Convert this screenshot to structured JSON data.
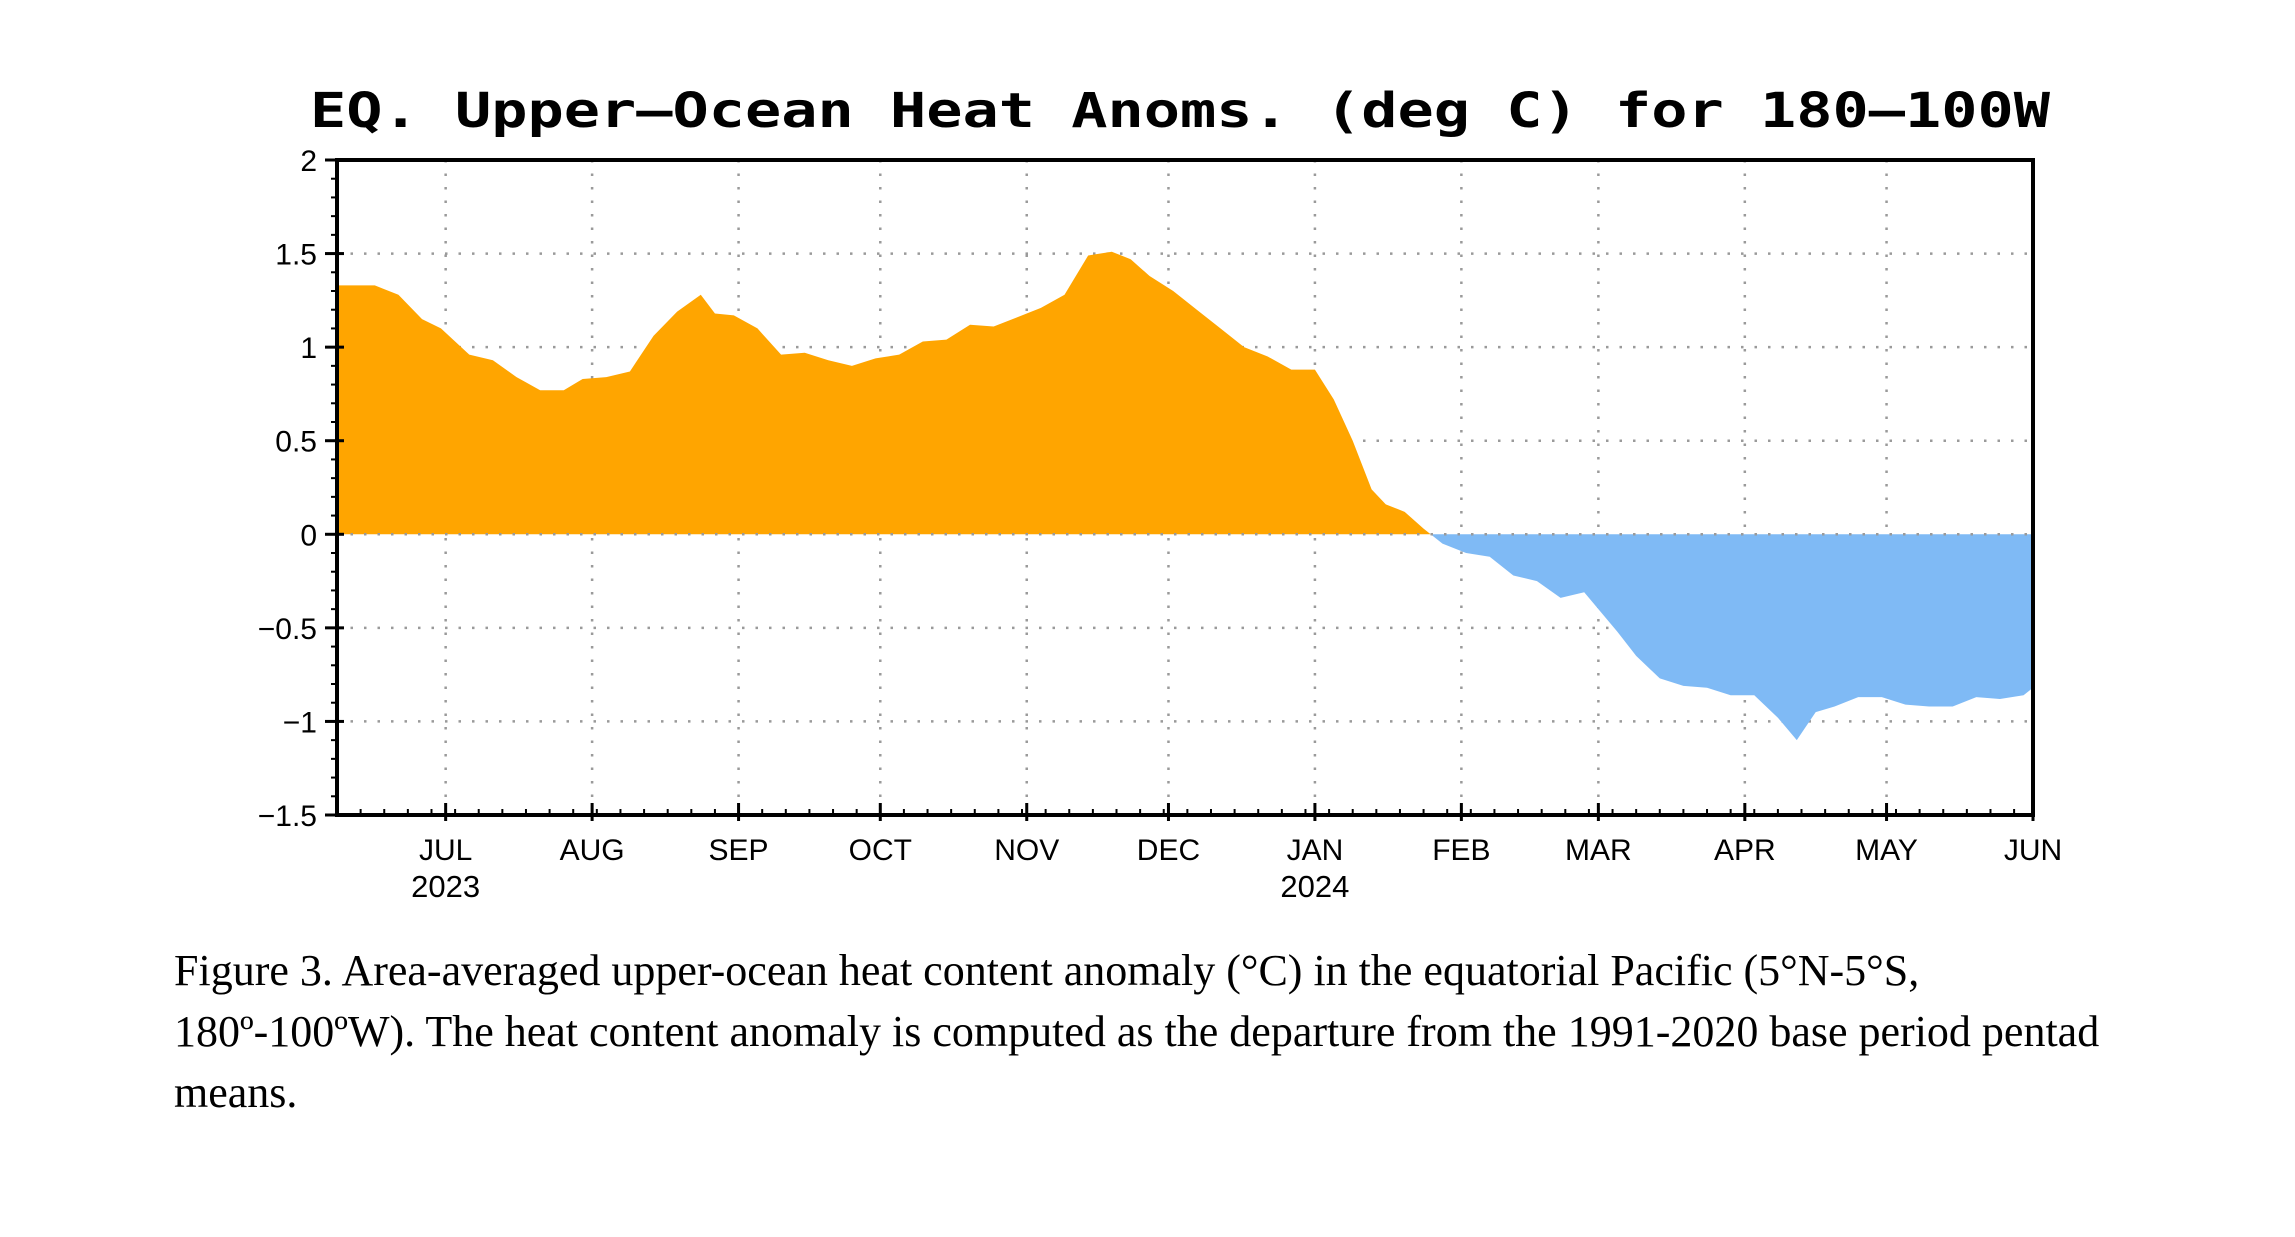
{
  "chart_data": {
    "type": "area",
    "title": "EQ. Upper—Ocean Heat Anoms. (deg C) for 180—100W",
    "xlabel": "",
    "ylabel": "",
    "ylim": [
      -1.5,
      2
    ],
    "yticks": [
      2,
      1.5,
      1,
      0.5,
      0,
      -0.5,
      -1,
      -1.5
    ],
    "ytick_labels": [
      "2",
      "1.5",
      "1",
      "0.5",
      "0",
      "−0.5",
      "−1",
      "−1.5"
    ],
    "x_range": [
      "2023-06-08",
      "2024-06-01"
    ],
    "months": [
      {
        "label": "JUL",
        "date": "2023-07-01",
        "year": "2023"
      },
      {
        "label": "AUG",
        "date": "2023-08-01"
      },
      {
        "label": "SEP",
        "date": "2023-09-01"
      },
      {
        "label": "OCT",
        "date": "2023-10-01"
      },
      {
        "label": "NOV",
        "date": "2023-11-01"
      },
      {
        "label": "DEC",
        "date": "2023-12-01"
      },
      {
        "label": "JAN",
        "date": "2024-01-01",
        "year": "2024"
      },
      {
        "label": "FEB",
        "date": "2024-02-01"
      },
      {
        "label": "MAR",
        "date": "2024-03-01"
      },
      {
        "label": "APR",
        "date": "2024-04-01"
      },
      {
        "label": "MAY",
        "date": "2024-05-01"
      },
      {
        "label": "JUN",
        "date": "2024-06-01"
      }
    ],
    "grid": true,
    "positive_color": "#ffa500",
    "negative_color": "#7fbaf5",
    "series": [
      {
        "x": [
          "2023-06-08",
          "2023-06-16",
          "2023-06-21",
          "2023-06-26",
          "2023-06-30",
          "2023-07-06",
          "2023-07-11",
          "2023-07-16",
          "2023-07-21",
          "2023-07-26",
          "2023-07-30",
          "2023-08-04",
          "2023-08-09",
          "2023-08-14",
          "2023-08-19",
          "2023-08-24",
          "2023-08-27",
          "2023-08-31",
          "2023-09-05",
          "2023-09-10",
          "2023-09-15",
          "2023-09-20",
          "2023-09-25",
          "2023-09-30",
          "2023-10-05",
          "2023-10-10",
          "2023-10-15",
          "2023-10-20",
          "2023-10-25",
          "2023-10-30",
          "2023-11-04",
          "2023-11-09",
          "2023-11-14",
          "2023-11-19",
          "2023-11-23",
          "2023-11-27",
          "2023-12-02",
          "2023-12-07",
          "2023-12-12",
          "2023-12-17",
          "2023-12-22",
          "2023-12-27",
          "2024-01-01",
          "2024-01-05",
          "2024-01-09",
          "2024-01-13",
          "2024-01-16",
          "2024-01-20",
          "2024-01-24",
          "2024-01-28",
          "2024-02-02",
          "2024-02-07",
          "2024-02-12",
          "2024-02-17",
          "2024-02-22",
          "2024-02-27",
          "2024-03-01",
          "2024-03-05",
          "2024-03-09",
          "2024-03-14",
          "2024-03-19",
          "2024-03-24",
          "2024-03-29",
          "2024-04-03",
          "2024-04-08",
          "2024-04-12",
          "2024-04-16",
          "2024-04-20",
          "2024-04-25",
          "2024-04-30",
          "2024-05-05",
          "2024-05-10",
          "2024-05-15",
          "2024-05-20",
          "2024-05-25",
          "2024-05-30",
          "2024-06-01"
        ],
        "values": [
          1.33,
          1.33,
          1.28,
          1.15,
          1.1,
          0.96,
          0.93,
          0.84,
          0.77,
          0.77,
          0.83,
          0.84,
          0.87,
          1.06,
          1.19,
          1.28,
          1.18,
          1.17,
          1.1,
          0.96,
          0.97,
          0.93,
          0.9,
          0.94,
          0.96,
          1.03,
          1.04,
          1.12,
          1.11,
          1.16,
          1.21,
          1.28,
          1.49,
          1.51,
          1.47,
          1.38,
          1.3,
          1.2,
          1.1,
          1.0,
          0.95,
          0.88,
          0.88,
          0.72,
          0.5,
          0.24,
          0.16,
          0.12,
          0.03,
          -0.05,
          -0.1,
          -0.12,
          -0.22,
          -0.25,
          -0.34,
          -0.31,
          -0.4,
          -0.52,
          -0.65,
          -0.77,
          -0.81,
          -0.82,
          -0.86,
          -0.86,
          -0.98,
          -1.1,
          -0.95,
          -0.92,
          -0.87,
          -0.87,
          -0.91,
          -0.92,
          -0.92,
          -0.87,
          -0.88,
          -0.86,
          -0.82
        ]
      }
    ]
  },
  "caption": "Figure 3. Area-averaged upper-ocean heat content anomaly (°C) in the equatorial Pacific (5°N-5°S, 180º-100ºW). The heat content anomaly is computed as the departure from the 1991-2020 base period pentad means."
}
